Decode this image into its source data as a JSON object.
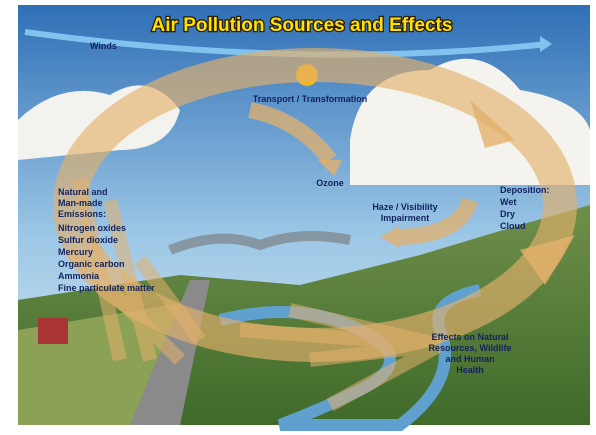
{
  "title": "Air Pollution Sources and Effects",
  "labels": {
    "winds": "Winds",
    "transport": "Transport / Transformation",
    "ozone": "Ozone",
    "haze": [
      "Haze / Visibility",
      "Impairment"
    ],
    "deposition": [
      "Deposition:",
      "Wet",
      "Dry",
      "Cloud"
    ],
    "emissions": [
      "Natural and",
      "Man-made",
      "Emissions:"
    ],
    "pollutants": [
      "Nitrogen oxides",
      "Sulfur dioxide",
      "Mercury",
      "Organic carbon",
      "Ammonia",
      "Fine particulate matter"
    ],
    "effects": [
      "Effects on Natural",
      "Resources, Wildlife",
      "and Human",
      "Health"
    ]
  }
}
